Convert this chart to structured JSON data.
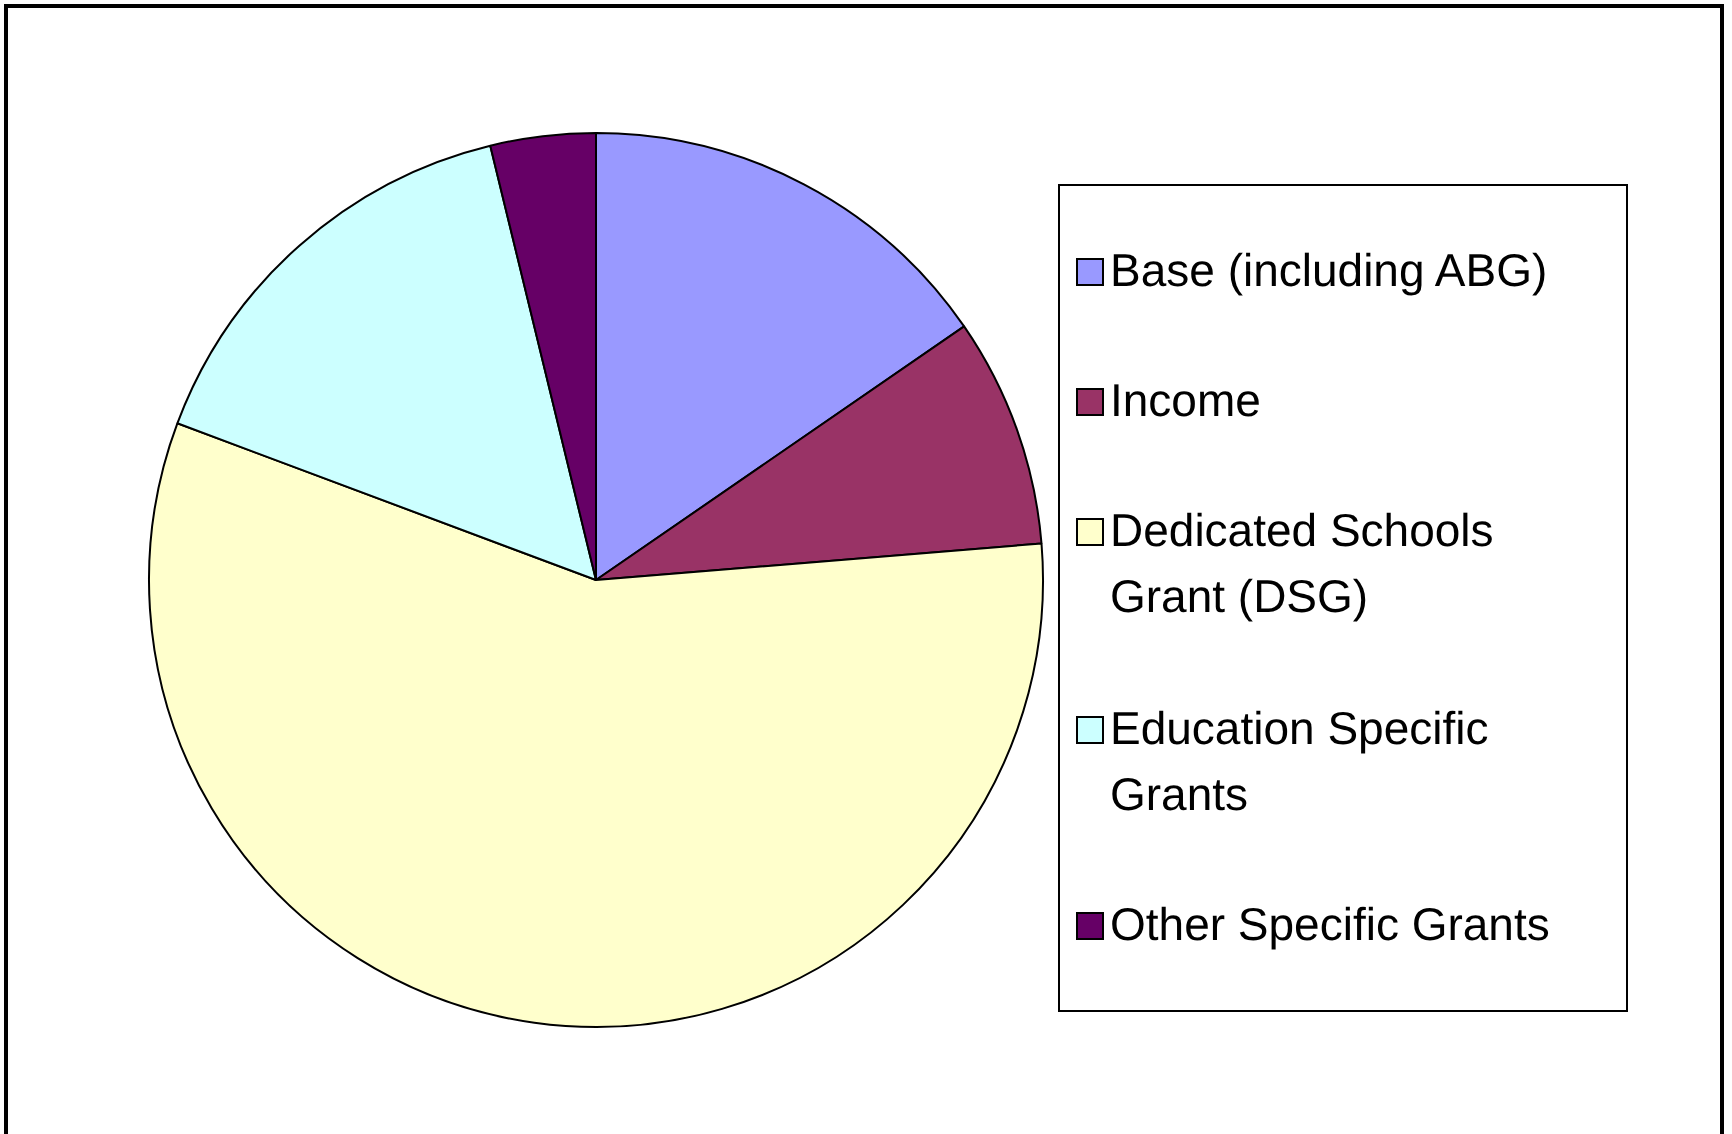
{
  "chart_data": {
    "type": "pie",
    "categories": [
      "Base (including ABG)",
      "Income",
      "Dedicated Schools Grant (DSG)",
      "Education Specific Grants",
      "Other Specific Grants"
    ],
    "values": [
      15.4,
      8.3,
      57.0,
      15.5,
      3.8
    ],
    "colors": [
      "#9999ff",
      "#993366",
      "#ffffcc",
      "#ccffff",
      "#660066"
    ],
    "legend": "right"
  }
}
